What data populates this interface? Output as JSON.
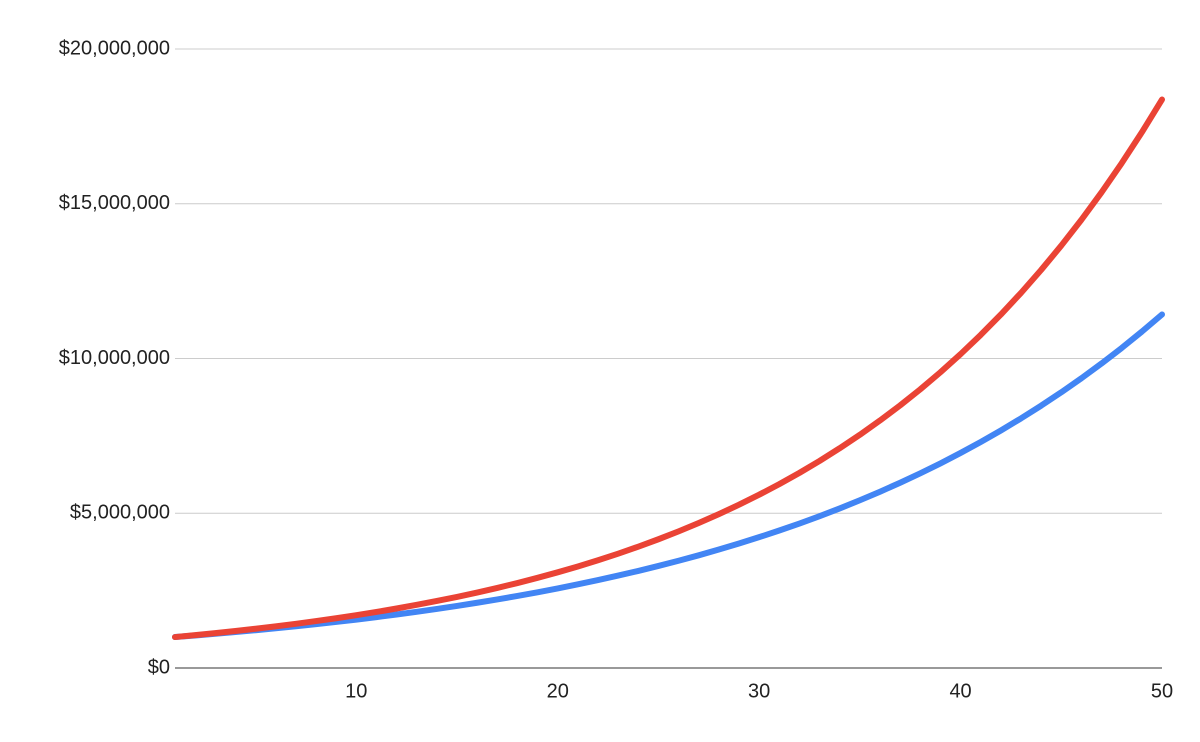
{
  "chart_data": {
    "type": "line",
    "x": [
      1,
      2,
      3,
      4,
      5,
      6,
      7,
      8,
      9,
      10,
      11,
      12,
      13,
      14,
      15,
      16,
      17,
      18,
      19,
      20,
      21,
      22,
      23,
      24,
      25,
      26,
      27,
      28,
      29,
      30,
      31,
      32,
      33,
      34,
      35,
      36,
      37,
      38,
      39,
      40,
      41,
      42,
      43,
      44,
      45,
      46,
      47,
      48,
      49,
      50
    ],
    "series": [
      {
        "color": "#4285f4",
        "values": [
          1000000,
          1051000,
          1105000,
          1161000,
          1220000,
          1282000,
          1347000,
          1416000,
          1488000,
          1564000,
          1644000,
          1728000,
          1816000,
          1908000,
          2005000,
          2108000,
          2215000,
          2328000,
          2447000,
          2571000,
          2702000,
          2840000,
          2985000,
          3137000,
          3297000,
          3465000,
          3641000,
          3827000,
          4022000,
          4227000,
          4442000,
          4668000,
          4906000,
          5156000,
          5419000,
          5695000,
          5986000,
          6291000,
          6611000,
          6948000,
          7302000,
          7674000,
          8065000,
          8476000,
          8908000,
          9362000,
          9839000,
          10341000,
          10868000,
          11422000
        ]
      },
      {
        "color": "#ea4335",
        "values": [
          1000000,
          1061000,
          1126000,
          1195000,
          1268000,
          1346000,
          1428000,
          1516000,
          1608000,
          1707000,
          1811000,
          1922000,
          2040000,
          2165000,
          2297000,
          2438000,
          2587000,
          2745000,
          2913000,
          3091000,
          3281000,
          3481000,
          3694000,
          3920000,
          4160000,
          4415000,
          4685000,
          4972000,
          5276000,
          5599000,
          5942000,
          6305000,
          6691000,
          7101000,
          7535000,
          7997000,
          8486000,
          9005000,
          9556000,
          10141000,
          10762000,
          11421000,
          12119000,
          12861000,
          13648000,
          14484000,
          15370000,
          16311000,
          17309000,
          18368000
        ]
      }
    ],
    "xlim": [
      1,
      50
    ],
    "xticks": [
      10,
      20,
      30,
      40,
      50
    ],
    "ylim": [
      0,
      20000000
    ],
    "yticks": [
      {
        "value": 0,
        "label": "$0"
      },
      {
        "value": 5000000,
        "label": "$5,000,000"
      },
      {
        "value": 10000000,
        "label": "$10,000,000"
      },
      {
        "value": 15000000,
        "label": "$15,000,000"
      },
      {
        "value": 20000000,
        "label": "$20,000,000"
      }
    ],
    "grid": true
  }
}
